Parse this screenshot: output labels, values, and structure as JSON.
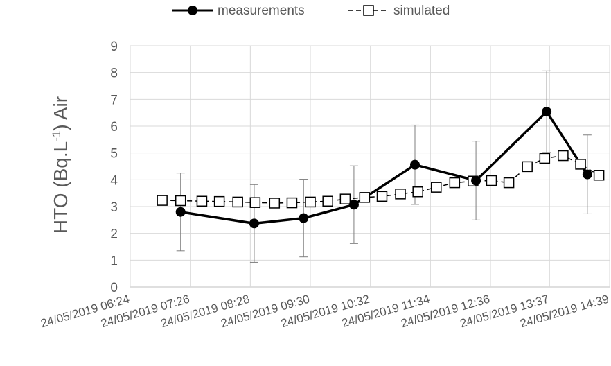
{
  "chart_data": {
    "type": "line",
    "title": "",
    "xlabel": "",
    "ylabel": {
      "prefix": "HTO (Bq.L",
      "superscript": "-1",
      "suffix": ") Air"
    },
    "ylim": [
      0,
      9
    ],
    "yticks": [
      0,
      1,
      2,
      3,
      4,
      5,
      6,
      7,
      8,
      9
    ],
    "xlim": [
      "24/05/2019 06:24",
      "24/05/2019 14:39"
    ],
    "xtick_labels": [
      "24/05/2019 06:24",
      "24/05/2019 07:26",
      "24/05/2019 08:28",
      "24/05/2019 09:30",
      "24/05/2019 10:32",
      "24/05/2019 11:34",
      "24/05/2019 12:36",
      "24/05/2019 13:37",
      "24/05/2019 14:39"
    ],
    "grid": true,
    "legend": "top-center",
    "series": [
      {
        "name": "measurements",
        "style": "solid line, filled circle markers",
        "color": "#000000",
        "x": [
          "24/05/2019 07:16",
          "24/05/2019 08:32",
          "24/05/2019 09:23",
          "24/05/2019 10:15",
          "24/05/2019 11:18",
          "24/05/2019 12:21",
          "24/05/2019 13:34",
          "24/05/2019 14:16"
        ],
        "y": [
          2.8,
          2.37,
          2.57,
          3.07,
          4.56,
          3.97,
          6.54,
          4.2
        ],
        "error": [
          1.45,
          1.45,
          1.45,
          1.45,
          1.48,
          1.47,
          1.52,
          1.47
        ]
      },
      {
        "name": "simulated",
        "style": "dashed line, open square markers",
        "color": "#000000",
        "x": [
          "24/05/2019 06:57",
          "24/05/2019 07:16",
          "24/05/2019 07:38",
          "24/05/2019 07:56",
          "24/05/2019 08:15",
          "24/05/2019 08:33",
          "24/05/2019 08:53",
          "24/05/2019 09:11",
          "24/05/2019 09:30",
          "24/05/2019 09:48",
          "24/05/2019 10:06",
          "24/05/2019 10:26",
          "24/05/2019 10:44",
          "24/05/2019 11:03",
          "24/05/2019 11:21",
          "24/05/2019 11:40",
          "24/05/2019 11:59",
          "24/05/2019 12:18",
          "24/05/2019 12:37",
          "24/05/2019 12:55",
          "24/05/2019 13:14",
          "24/05/2019 13:32",
          "24/05/2019 13:51",
          "24/05/2019 14:09",
          "24/05/2019 14:28"
        ],
        "y": [
          3.23,
          3.22,
          3.2,
          3.19,
          3.17,
          3.15,
          3.13,
          3.14,
          3.17,
          3.2,
          3.28,
          3.34,
          3.38,
          3.47,
          3.55,
          3.72,
          3.89,
          3.95,
          3.97,
          3.89,
          4.49,
          4.8,
          4.9,
          4.58,
          4.17
        ]
      }
    ]
  }
}
